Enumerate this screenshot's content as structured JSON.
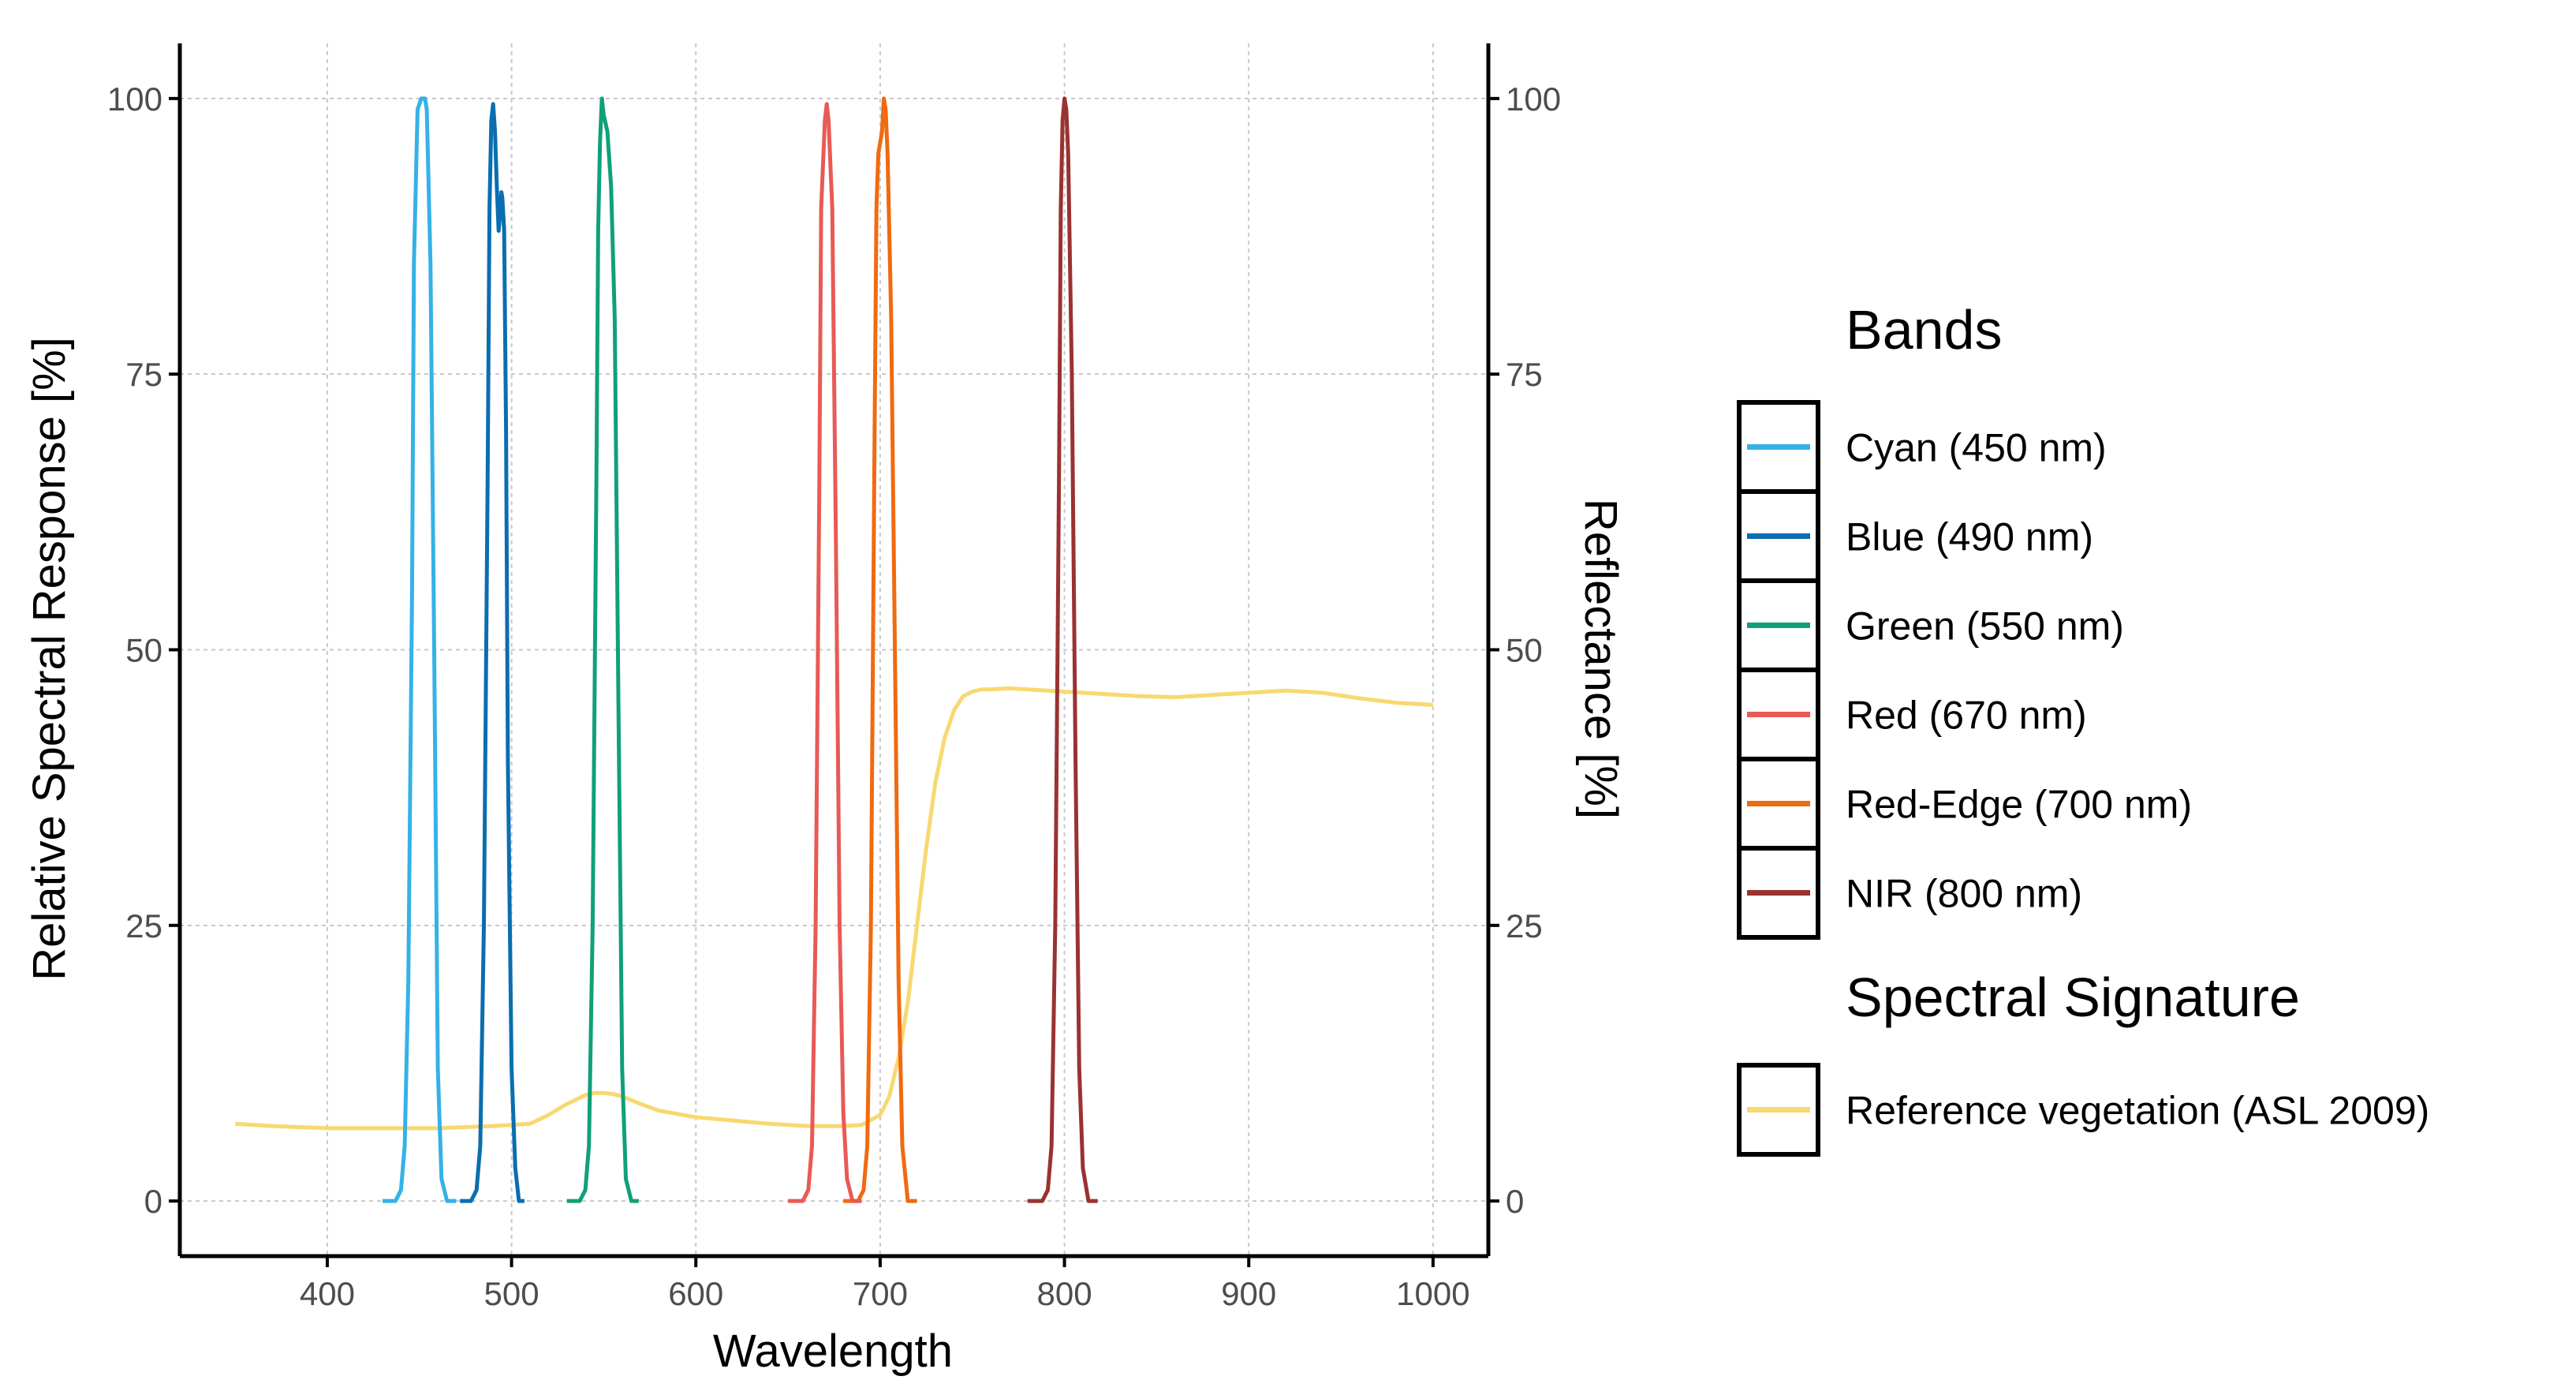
{
  "chart_data": {
    "type": "line",
    "xlabel": "Wavelength",
    "ylabel": "Relative Spectral Response [%]",
    "y2label": "Reflectance [%]",
    "xlim": [
      320,
      1030
    ],
    "ylim": [
      -5,
      105
    ],
    "x_ticks": [
      400,
      500,
      600,
      700,
      800,
      900,
      1000
    ],
    "y_ticks": [
      0,
      25,
      50,
      75,
      100
    ],
    "y2_ticks": [
      0,
      25,
      50,
      75,
      100
    ],
    "grid": true,
    "legend": {
      "placement": "right",
      "groups": [
        {
          "title": "Bands",
          "entries": [
            {
              "label": "Cyan (450 nm)",
              "color": "#35b1e8"
            },
            {
              "label": "Blue (490 nm)",
              "color": "#0a6eb0"
            },
            {
              "label": "Green (550 nm)",
              "color": "#10a07a"
            },
            {
              "label": "Red (670 nm)",
              "color": "#e85a55"
            },
            {
              "label": "Red-Edge (700 nm)",
              "color": "#f06a10"
            },
            {
              "label": "NIR (800 nm)",
              "color": "#9a3232"
            }
          ]
        },
        {
          "title": "Spectral Signature",
          "entries": [
            {
              "label": "Reference vegetation (ASL 2009)",
              "color": "#f8d870"
            }
          ]
        }
      ]
    },
    "series": [
      {
        "name": "Cyan (450 nm)",
        "color": "#35b1e8",
        "x": [
          430,
          437,
          440,
          442,
          444,
          446,
          447,
          449,
          451,
          453,
          454,
          456,
          458,
          460,
          462,
          465,
          470
        ],
        "y": [
          0,
          0,
          1,
          5,
          20,
          55,
          85,
          99,
          100,
          100,
          99,
          85,
          50,
          12,
          2,
          0,
          0
        ]
      },
      {
        "name": "Blue (490 nm)",
        "color": "#0a6eb0",
        "x": [
          472,
          478,
          481,
          483,
          485,
          487,
          488,
          489,
          490,
          491,
          492,
          493,
          494,
          494.5,
          495,
          496,
          497,
          498,
          500,
          502,
          504,
          507
        ],
        "y": [
          0,
          0,
          1,
          5,
          25,
          65,
          90,
          98,
          99.5,
          97,
          92,
          88,
          90,
          91.5,
          91,
          88,
          70,
          40,
          12,
          3,
          0,
          0
        ]
      },
      {
        "name": "Green (550 nm)",
        "color": "#10a07a",
        "x": [
          530,
          537,
          540,
          542,
          544,
          546,
          547,
          548,
          549,
          550,
          552,
          554,
          556,
          558,
          560,
          562,
          565,
          569
        ],
        "y": [
          0,
          0,
          1,
          5,
          25,
          65,
          88,
          96,
          100,
          98.5,
          97,
          92,
          80,
          45,
          12,
          2,
          0,
          0
        ]
      },
      {
        "name": "Red (670 nm)",
        "color": "#e85a55",
        "x": [
          650,
          658,
          661,
          663,
          665,
          667,
          668,
          670,
          671,
          672,
          674,
          676,
          678,
          680,
          682,
          685,
          690
        ],
        "y": [
          0,
          0,
          1,
          5,
          25,
          65,
          90,
          98,
          99.5,
          98,
          90,
          60,
          25,
          8,
          2,
          0,
          0
        ]
      },
      {
        "name": "Red-Edge (700 nm)",
        "color": "#f06a10",
        "x": [
          680,
          688,
          691,
          693,
          695,
          697,
          698,
          699,
          700,
          701,
          702,
          703,
          704,
          706,
          708,
          710,
          712,
          715,
          720
        ],
        "y": [
          0,
          0,
          1,
          5,
          25,
          70,
          90,
          95,
          96,
          97,
          100,
          99,
          95,
          80,
          50,
          20,
          5,
          0,
          0
        ]
      },
      {
        "name": "NIR (800 nm)",
        "color": "#9a3232",
        "x": [
          780,
          788,
          791,
          793,
          795,
          797,
          798,
          799,
          800,
          801,
          802,
          804,
          806,
          808,
          810,
          813,
          818
        ],
        "y": [
          0,
          0,
          1,
          5,
          25,
          65,
          90,
          98,
          100,
          99,
          95,
          75,
          40,
          12,
          3,
          0,
          0
        ]
      },
      {
        "name": "Reference vegetation (ASL 2009)",
        "color": "#f8d870",
        "x": [
          350,
          370,
          400,
          430,
          460,
          490,
          510,
          520,
          530,
          540,
          545,
          550,
          555,
          560,
          570,
          580,
          590,
          600,
          620,
          640,
          660,
          680,
          690,
          700,
          705,
          710,
          715,
          720,
          725,
          730,
          735,
          740,
          745,
          750,
          755,
          760,
          770,
          780,
          800,
          820,
          840,
          860,
          880,
          900,
          920,
          940,
          960,
          980,
          1000
        ],
        "y": [
          7,
          6.8,
          6.6,
          6.6,
          6.6,
          6.8,
          7,
          7.8,
          8.8,
          9.6,
          9.8,
          9.8,
          9.7,
          9.5,
          8.8,
          8.2,
          7.9,
          7.6,
          7.3,
          7,
          6.8,
          6.8,
          6.9,
          7.8,
          9.5,
          13,
          18,
          25,
          32,
          38,
          42,
          44.5,
          45.8,
          46.2,
          46.4,
          46.4,
          46.5,
          46.4,
          46.2,
          46,
          45.8,
          45.7,
          45.9,
          46.1,
          46.3,
          46.1,
          45.6,
          45.2,
          45
        ]
      }
    ]
  }
}
